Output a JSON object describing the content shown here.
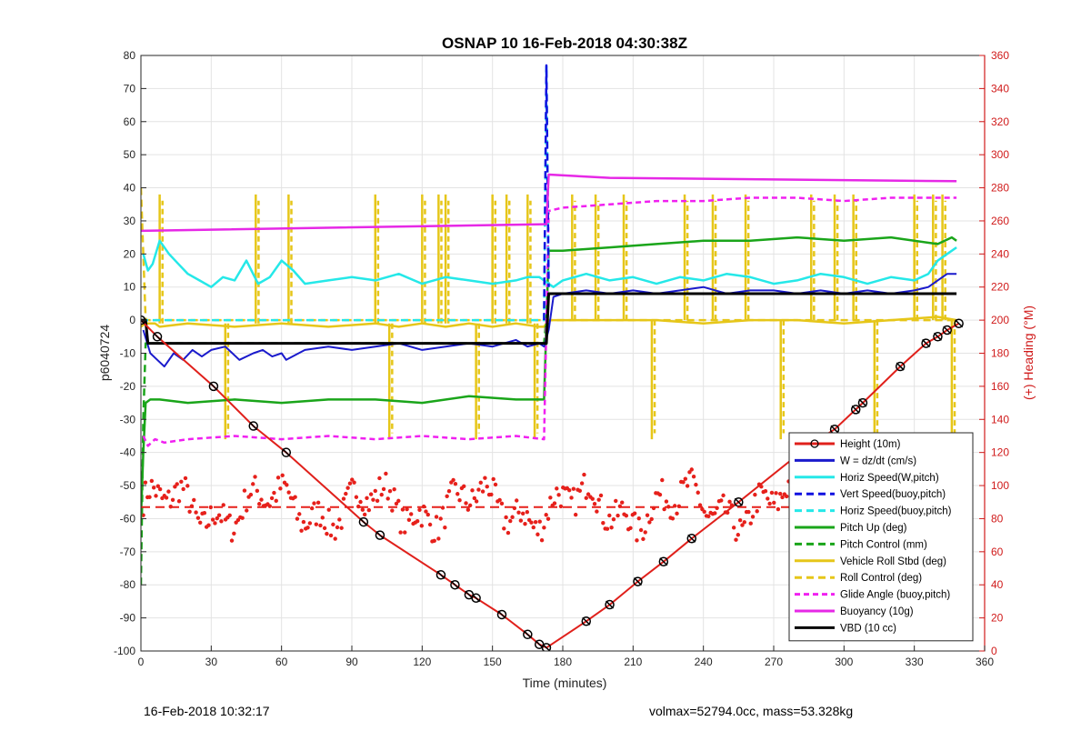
{
  "chart_data": {
    "type": "line",
    "title": "OSNAP 10 16-Feb-2018 04:30:38Z",
    "xlabel": "Time (minutes)",
    "ylabel": "p6040724",
    "y2label": "(+) Heading (°M)",
    "xlim": [
      0,
      360
    ],
    "ylim": [
      -100,
      80
    ],
    "y2lim": [
      0,
      360
    ],
    "xticks": [
      0,
      30,
      60,
      90,
      120,
      150,
      180,
      210,
      240,
      270,
      300,
      330,
      360
    ],
    "yticks": [
      -100,
      -90,
      -80,
      -70,
      -60,
      -50,
      -40,
      -30,
      -20,
      -10,
      0,
      10,
      20,
      30,
      40,
      50,
      60,
      70,
      80
    ],
    "y2ticks": [
      0,
      20,
      40,
      60,
      80,
      100,
      120,
      140,
      160,
      180,
      200,
      220,
      240,
      260,
      280,
      300,
      320,
      340,
      360
    ],
    "grid": true,
    "legend_position": "bottom-right",
    "colors": {
      "height": "#e0201b",
      "w": "#1a1acc",
      "horiz": "#25e8e8",
      "vert": "#1010e0",
      "pitch": "#1aa51a",
      "roll": "#e6c619",
      "glide": "#f020f0",
      "buoyancy": "#e628e6",
      "vbd": "#000000",
      "heading": "#e6201b",
      "right_axis": "#d01a1a"
    },
    "series": [
      {
        "name": "Height (10m)",
        "key": "height",
        "style": "solid-markers",
        "x": [
          0,
          7,
          31,
          48,
          62,
          95,
          102,
          128,
          134,
          140,
          143,
          154,
          165,
          170,
          173,
          190,
          200,
          212,
          223,
          235,
          255,
          285,
          296,
          305,
          308,
          324,
          335,
          340,
          344,
          349
        ],
        "y": [
          0,
          -5,
          -20,
          -32,
          -40,
          -61,
          -65,
          -77,
          -80,
          -83,
          -84,
          -89,
          -95,
          -98,
          -99,
          -91,
          -86,
          -79,
          -73,
          -66,
          -55,
          -38,
          -33,
          -27,
          -25,
          -14,
          -7,
          -5,
          -3,
          -1
        ]
      },
      {
        "name": "W = dz/dt (cm/s)",
        "key": "w",
        "style": "solid",
        "x": [
          1,
          4,
          7,
          10,
          14,
          18,
          22,
          26,
          30,
          36,
          42,
          48,
          52,
          56,
          60,
          62,
          70,
          80,
          90,
          100,
          110,
          120,
          130,
          140,
          150,
          160,
          165,
          170,
          172,
          174,
          176,
          180,
          190,
          200,
          210,
          220,
          230,
          240,
          250,
          260,
          270,
          280,
          290,
          300,
          310,
          320,
          330,
          336,
          340,
          344,
          348
        ],
        "y": [
          -3,
          -10,
          -12,
          -14,
          -10,
          -12,
          -9,
          -11,
          -9,
          -8,
          -12,
          -10,
          -9,
          -11,
          -10,
          -12,
          -9,
          -8,
          -9,
          -8,
          -7,
          -9,
          -8,
          -7,
          -8,
          -6,
          -8,
          -7,
          -8,
          -3,
          7,
          8,
          9,
          8,
          9,
          8,
          9,
          10,
          8,
          9,
          9,
          8,
          9,
          8,
          9,
          8,
          9,
          10,
          12,
          14,
          14
        ]
      },
      {
        "name": "Horiz Speed(W,pitch)",
        "key": "horiz",
        "style": "solid",
        "x": [
          1,
          3,
          5,
          8,
          12,
          16,
          20,
          25,
          30,
          35,
          40,
          45,
          50,
          55,
          60,
          65,
          70,
          80,
          90,
          100,
          110,
          120,
          130,
          140,
          150,
          160,
          165,
          170,
          172,
          174,
          176,
          180,
          190,
          200,
          210,
          220,
          230,
          240,
          250,
          260,
          270,
          280,
          290,
          300,
          310,
          320,
          330,
          336,
          340,
          344,
          348
        ],
        "y": [
          20,
          15,
          17,
          24,
          20,
          17,
          14,
          12,
          10,
          13,
          12,
          18,
          11,
          13,
          18,
          15,
          11,
          12,
          13,
          12,
          14,
          11,
          13,
          12,
          11,
          12,
          13,
          13,
          12,
          11,
          10,
          12,
          14,
          12,
          13,
          11,
          13,
          12,
          14,
          13,
          11,
          12,
          14,
          13,
          11,
          13,
          12,
          14,
          18,
          20,
          22
        ]
      },
      {
        "name": "Vert Speed(buoy,pitch)",
        "key": "vert",
        "style": "dashed",
        "x": [
          172,
          173,
          174
        ],
        "y": [
          0,
          77,
          10
        ]
      },
      {
        "name": "Horiz Speed(buoy,pitch)",
        "key": "horiz_buoy",
        "style": "dashed",
        "x": [
          0,
          170,
          172,
          173,
          174
        ],
        "y": [
          0,
          0,
          0,
          77,
          10
        ]
      },
      {
        "name": "Pitch Up (deg)",
        "key": "pitch",
        "style": "solid",
        "x": [
          0,
          1,
          2,
          4,
          8,
          20,
          40,
          60,
          80,
          100,
          120,
          140,
          160,
          172,
          174,
          180,
          200,
          220,
          240,
          260,
          280,
          300,
          320,
          340,
          346,
          348
        ],
        "y": [
          -60,
          -40,
          -25,
          -24,
          -24,
          -25,
          -24,
          -25,
          -24,
          -24,
          -25,
          -23,
          -24,
          -24,
          21,
          21,
          22,
          23,
          24,
          24,
          25,
          24,
          25,
          23,
          25,
          24
        ]
      },
      {
        "name": "Pitch Control (mm)",
        "key": "pitch_ctrl",
        "style": "dashed",
        "x": [
          0,
          1,
          2,
          172,
          174,
          348
        ],
        "y": [
          -80,
          -30,
          -7,
          -7,
          8,
          8
        ]
      },
      {
        "name": "Vehicle Roll Stbd (deg)",
        "key": "roll",
        "style": "solid",
        "x": [
          0,
          2,
          6,
          8,
          20,
          40,
          60,
          80,
          100,
          110,
          120,
          130,
          140,
          150,
          160,
          170,
          172,
          174,
          180,
          200,
          220,
          240,
          260,
          280,
          300,
          320,
          340,
          348
        ],
        "y": [
          -2,
          -1,
          -1,
          -2,
          -1,
          -2,
          -1,
          -2,
          -1,
          -2,
          -1,
          -2,
          -1,
          -2,
          -1,
          -2,
          -2,
          0,
          0,
          0,
          0,
          -1,
          0,
          0,
          -1,
          0,
          1,
          0
        ]
      },
      {
        "name": "Roll Control (deg)",
        "key": "roll_ctrl",
        "style": "dashed",
        "x": [
          0,
          2,
          5,
          172,
          174,
          348
        ],
        "y": [
          40,
          0,
          0,
          0,
          0,
          0
        ]
      },
      {
        "name": "Glide Angle (buoy,pitch)",
        "key": "glide",
        "style": "dashed",
        "x": [
          1,
          3,
          6,
          10,
          20,
          40,
          60,
          80,
          100,
          120,
          140,
          160,
          172,
          174,
          180,
          200,
          220,
          240,
          260,
          280,
          300,
          320,
          340,
          345,
          348
        ],
        "y": [
          -35,
          -38,
          -36,
          -37,
          -36,
          -35,
          -36,
          -35,
          -36,
          -35,
          -36,
          -35,
          -36,
          33,
          34,
          35,
          36,
          36,
          37,
          37,
          36,
          37,
          37,
          37,
          37
        ]
      },
      {
        "name": "Buoyancy (10g)",
        "key": "buoyancy",
        "style": "solid",
        "x": [
          0,
          172,
          173,
          174,
          200,
          348
        ],
        "y": [
          27,
          29,
          29,
          44,
          43,
          42
        ]
      },
      {
        "name": "VBD (10 cc)",
        "key": "vbd",
        "style": "solid",
        "x": [
          0,
          2,
          3,
          172,
          173,
          174,
          348
        ],
        "y": [
          0,
          0,
          -7,
          -7,
          -7,
          8,
          8
        ]
      }
    ],
    "spikes": {
      "roll_spikes_x": [
        8,
        36,
        49,
        63,
        100,
        106,
        120,
        127,
        130,
        143,
        150,
        156,
        165,
        168,
        184,
        194,
        206,
        218,
        232,
        244,
        258,
        273,
        286,
        296,
        304,
        313,
        330,
        338,
        342,
        346
      ],
      "roll_spike_top": 38,
      "roll_spike_bottom": -36
    },
    "heading_reference": {
      "x": [
        0,
        350
      ],
      "y2": [
        87,
        87
      ],
      "style": "dashed"
    },
    "heading": {
      "name": "Heading",
      "y2_mean": 87
    }
  },
  "footer": {
    "left": "16-Feb-2018 10:32:17",
    "right": "volmax=52794.0cc, mass=53.328kg"
  }
}
